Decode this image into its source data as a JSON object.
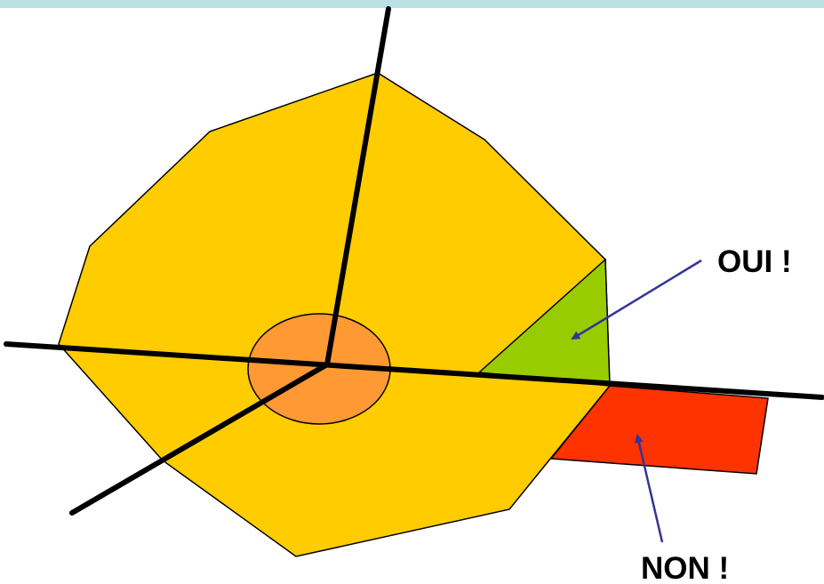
{
  "labels": {
    "yes": "OUI !",
    "no": "NON !"
  },
  "colors": {
    "header_band": "#b9e0e3",
    "polygon_fill": "#ffcc00",
    "center_ellipse": "#ff9933",
    "valid_region": "#99cc00",
    "invalid_region": "#ff3300",
    "arrow": "#333399",
    "lines": "#000000"
  }
}
